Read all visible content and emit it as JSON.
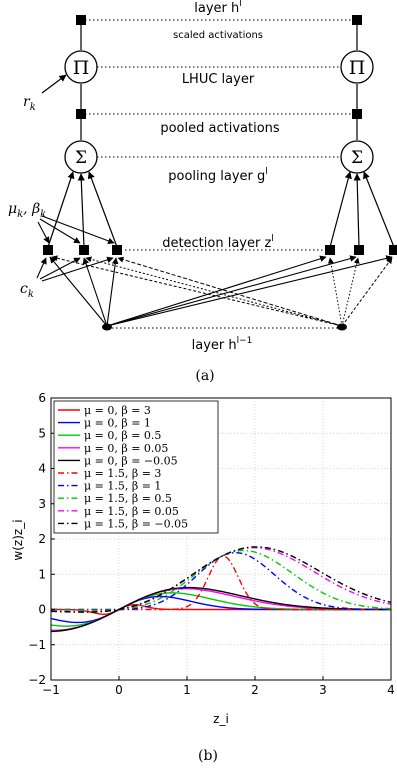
{
  "panel_a": {
    "caption": "(a)",
    "layer_labels": {
      "top": "layer h",
      "top_sup": "l",
      "scaled": "scaled activations",
      "lhuc": "LHUC layer",
      "pooled": "pooled activations",
      "pooling": "pooling layer g",
      "pooling_sup": "l",
      "detection": "detection layer z",
      "detection_sup": "l",
      "bottom": "layer h",
      "bottom_sup": "l−1"
    },
    "side_labels": {
      "r": "r",
      "r_sub": "k",
      "mu_beta": "μ",
      "mu_sub": "k",
      "beta": "β",
      "beta_sub": "k",
      "c": "c",
      "c_sub": "k"
    },
    "symbols": {
      "product": "Π",
      "sum": "Σ"
    }
  },
  "panel_b": {
    "caption": "(b)",
    "chart_data": {
      "type": "line",
      "xlabel": "z_i",
      "ylabel": "w(z)z_i",
      "xlim": [
        -1,
        4
      ],
      "ylim": [
        -2,
        6
      ],
      "xticks": [
        "−1",
        "0",
        "1",
        "2",
        "3",
        "4"
      ],
      "yticks": [
        "−2",
        "−1",
        "0",
        "1",
        "2",
        "3",
        "4",
        "5",
        "6"
      ],
      "grid": true,
      "legend_position": "top-left",
      "series": [
        {
          "name": "μ = 0, β = 3",
          "color": "#ff0000",
          "dash": "solid",
          "mu": 0,
          "beta": 3
        },
        {
          "name": "μ = 0, β = 1",
          "color": "#0000ff",
          "dash": "solid",
          "mu": 0,
          "beta": 1
        },
        {
          "name": "μ = 0, β = 0.5",
          "color": "#00cc00",
          "dash": "solid",
          "mu": 0,
          "beta": 0.5
        },
        {
          "name": "μ = 0, β = 0.05",
          "color": "#ff00ff",
          "dash": "solid",
          "mu": 0,
          "beta": 0.05
        },
        {
          "name": "μ = 0, β = −0.05",
          "color": "#000000",
          "dash": "solid",
          "mu": 0,
          "beta": -0.05
        },
        {
          "name": "μ = 1.5, β = 3",
          "color": "#ff0000",
          "dash": "dashdot",
          "mu": 1.5,
          "beta": 3
        },
        {
          "name": "μ = 1.5, β = 1",
          "color": "#0000ff",
          "dash": "dashdot",
          "mu": 1.5,
          "beta": 1
        },
        {
          "name": "μ = 1.5, β = 0.5",
          "color": "#00cc00",
          "dash": "dashdot",
          "mu": 1.5,
          "beta": 0.5
        },
        {
          "name": "μ = 1.5, β = 0.05",
          "color": "#ff00ff",
          "dash": "dashdot",
          "mu": 1.5,
          "beta": 0.05
        },
        {
          "name": "μ = 1.5, β = −0.05",
          "color": "#000000",
          "dash": "dashdot",
          "mu": 1.5,
          "beta": -0.05
        }
      ]
    }
  }
}
